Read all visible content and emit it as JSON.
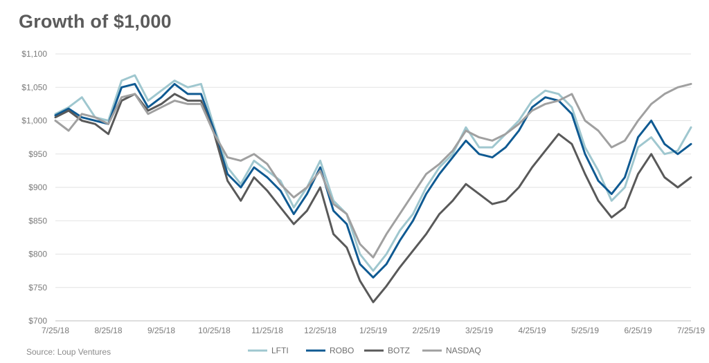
{
  "title": "Growth of $1,000",
  "source": "Source: Loup Ventures",
  "chart_data": {
    "type": "line",
    "title": "Growth of $1,000",
    "xlabel": "",
    "ylabel": "",
    "ylim": [
      700,
      1100
    ],
    "y_ticks": [
      700,
      750,
      800,
      850,
      900,
      950,
      1000,
      1050,
      1100
    ],
    "y_tick_labels": [
      "$700",
      "$750",
      "$800",
      "$850",
      "$900",
      "$950",
      "$1,000",
      "$1,050",
      "$1,100"
    ],
    "x_tick_labels": [
      "7/25/18",
      "8/25/18",
      "9/25/18",
      "10/25/18",
      "11/25/18",
      "12/25/18",
      "1/25/19",
      "2/25/19",
      "3/25/19",
      "4/25/19",
      "5/25/19",
      "6/25/19",
      "7/25/19"
    ],
    "grid": "horizontal",
    "legend_position": "bottom",
    "x": [
      0,
      0.25,
      0.5,
      0.75,
      1,
      1.25,
      1.5,
      1.75,
      2,
      2.25,
      2.5,
      2.75,
      3,
      3.25,
      3.5,
      3.75,
      4,
      4.25,
      4.5,
      4.75,
      5,
      5.25,
      5.5,
      5.75,
      6,
      6.25,
      6.5,
      6.75,
      7,
      7.25,
      7.5,
      7.75,
      8,
      8.25,
      8.5,
      8.75,
      9,
      9.25,
      9.5,
      9.75,
      10,
      10.25,
      10.5,
      10.75,
      11,
      11.25,
      11.5,
      11.75,
      12
    ],
    "series": [
      {
        "name": "LFTI",
        "color": "#9fc7cf",
        "values": [
          1010,
          1020,
          1035,
          1005,
          1000,
          1060,
          1068,
          1030,
          1045,
          1060,
          1050,
          1055,
          990,
          930,
          905,
          940,
          925,
          910,
          870,
          900,
          940,
          880,
          860,
          800,
          775,
          800,
          835,
          860,
          900,
          930,
          950,
          990,
          960,
          960,
          980,
          1000,
          1030,
          1045,
          1040,
          1020,
          960,
          925,
          880,
          900,
          960,
          975,
          950,
          955,
          990
        ]
      },
      {
        "name": "ROBO",
        "color": "#0f5a92",
        "values": [
          1008,
          1018,
          1005,
          1000,
          995,
          1050,
          1055,
          1020,
          1035,
          1055,
          1040,
          1040,
          985,
          920,
          900,
          930,
          915,
          895,
          860,
          890,
          930,
          865,
          845,
          785,
          765,
          785,
          820,
          850,
          890,
          920,
          945,
          970,
          950,
          945,
          960,
          985,
          1020,
          1035,
          1030,
          1010,
          950,
          910,
          890,
          915,
          975,
          1000,
          965,
          950,
          965
        ]
      },
      {
        "name": "BOTZ",
        "color": "#595959",
        "values": [
          1005,
          1015,
          1000,
          995,
          980,
          1030,
          1040,
          1015,
          1025,
          1040,
          1030,
          1030,
          980,
          910,
          880,
          915,
          895,
          870,
          845,
          865,
          900,
          830,
          810,
          760,
          728,
          752,
          780,
          805,
          830,
          860,
          880,
          905,
          890,
          875,
          880,
          900,
          930,
          955,
          980,
          965,
          920,
          880,
          855,
          870,
          920,
          950,
          915,
          900,
          915
        ]
      },
      {
        "name": "NASDAQ",
        "color": "#a0a0a0",
        "values": [
          1000,
          985,
          1010,
          1005,
          995,
          1035,
          1040,
          1010,
          1020,
          1030,
          1025,
          1025,
          980,
          945,
          940,
          950,
          935,
          905,
          885,
          900,
          925,
          875,
          860,
          815,
          795,
          830,
          860,
          890,
          920,
          935,
          955,
          985,
          975,
          970,
          980,
          995,
          1015,
          1025,
          1030,
          1040,
          1000,
          985,
          960,
          970,
          1000,
          1025,
          1040,
          1050,
          1055
        ]
      }
    ]
  }
}
